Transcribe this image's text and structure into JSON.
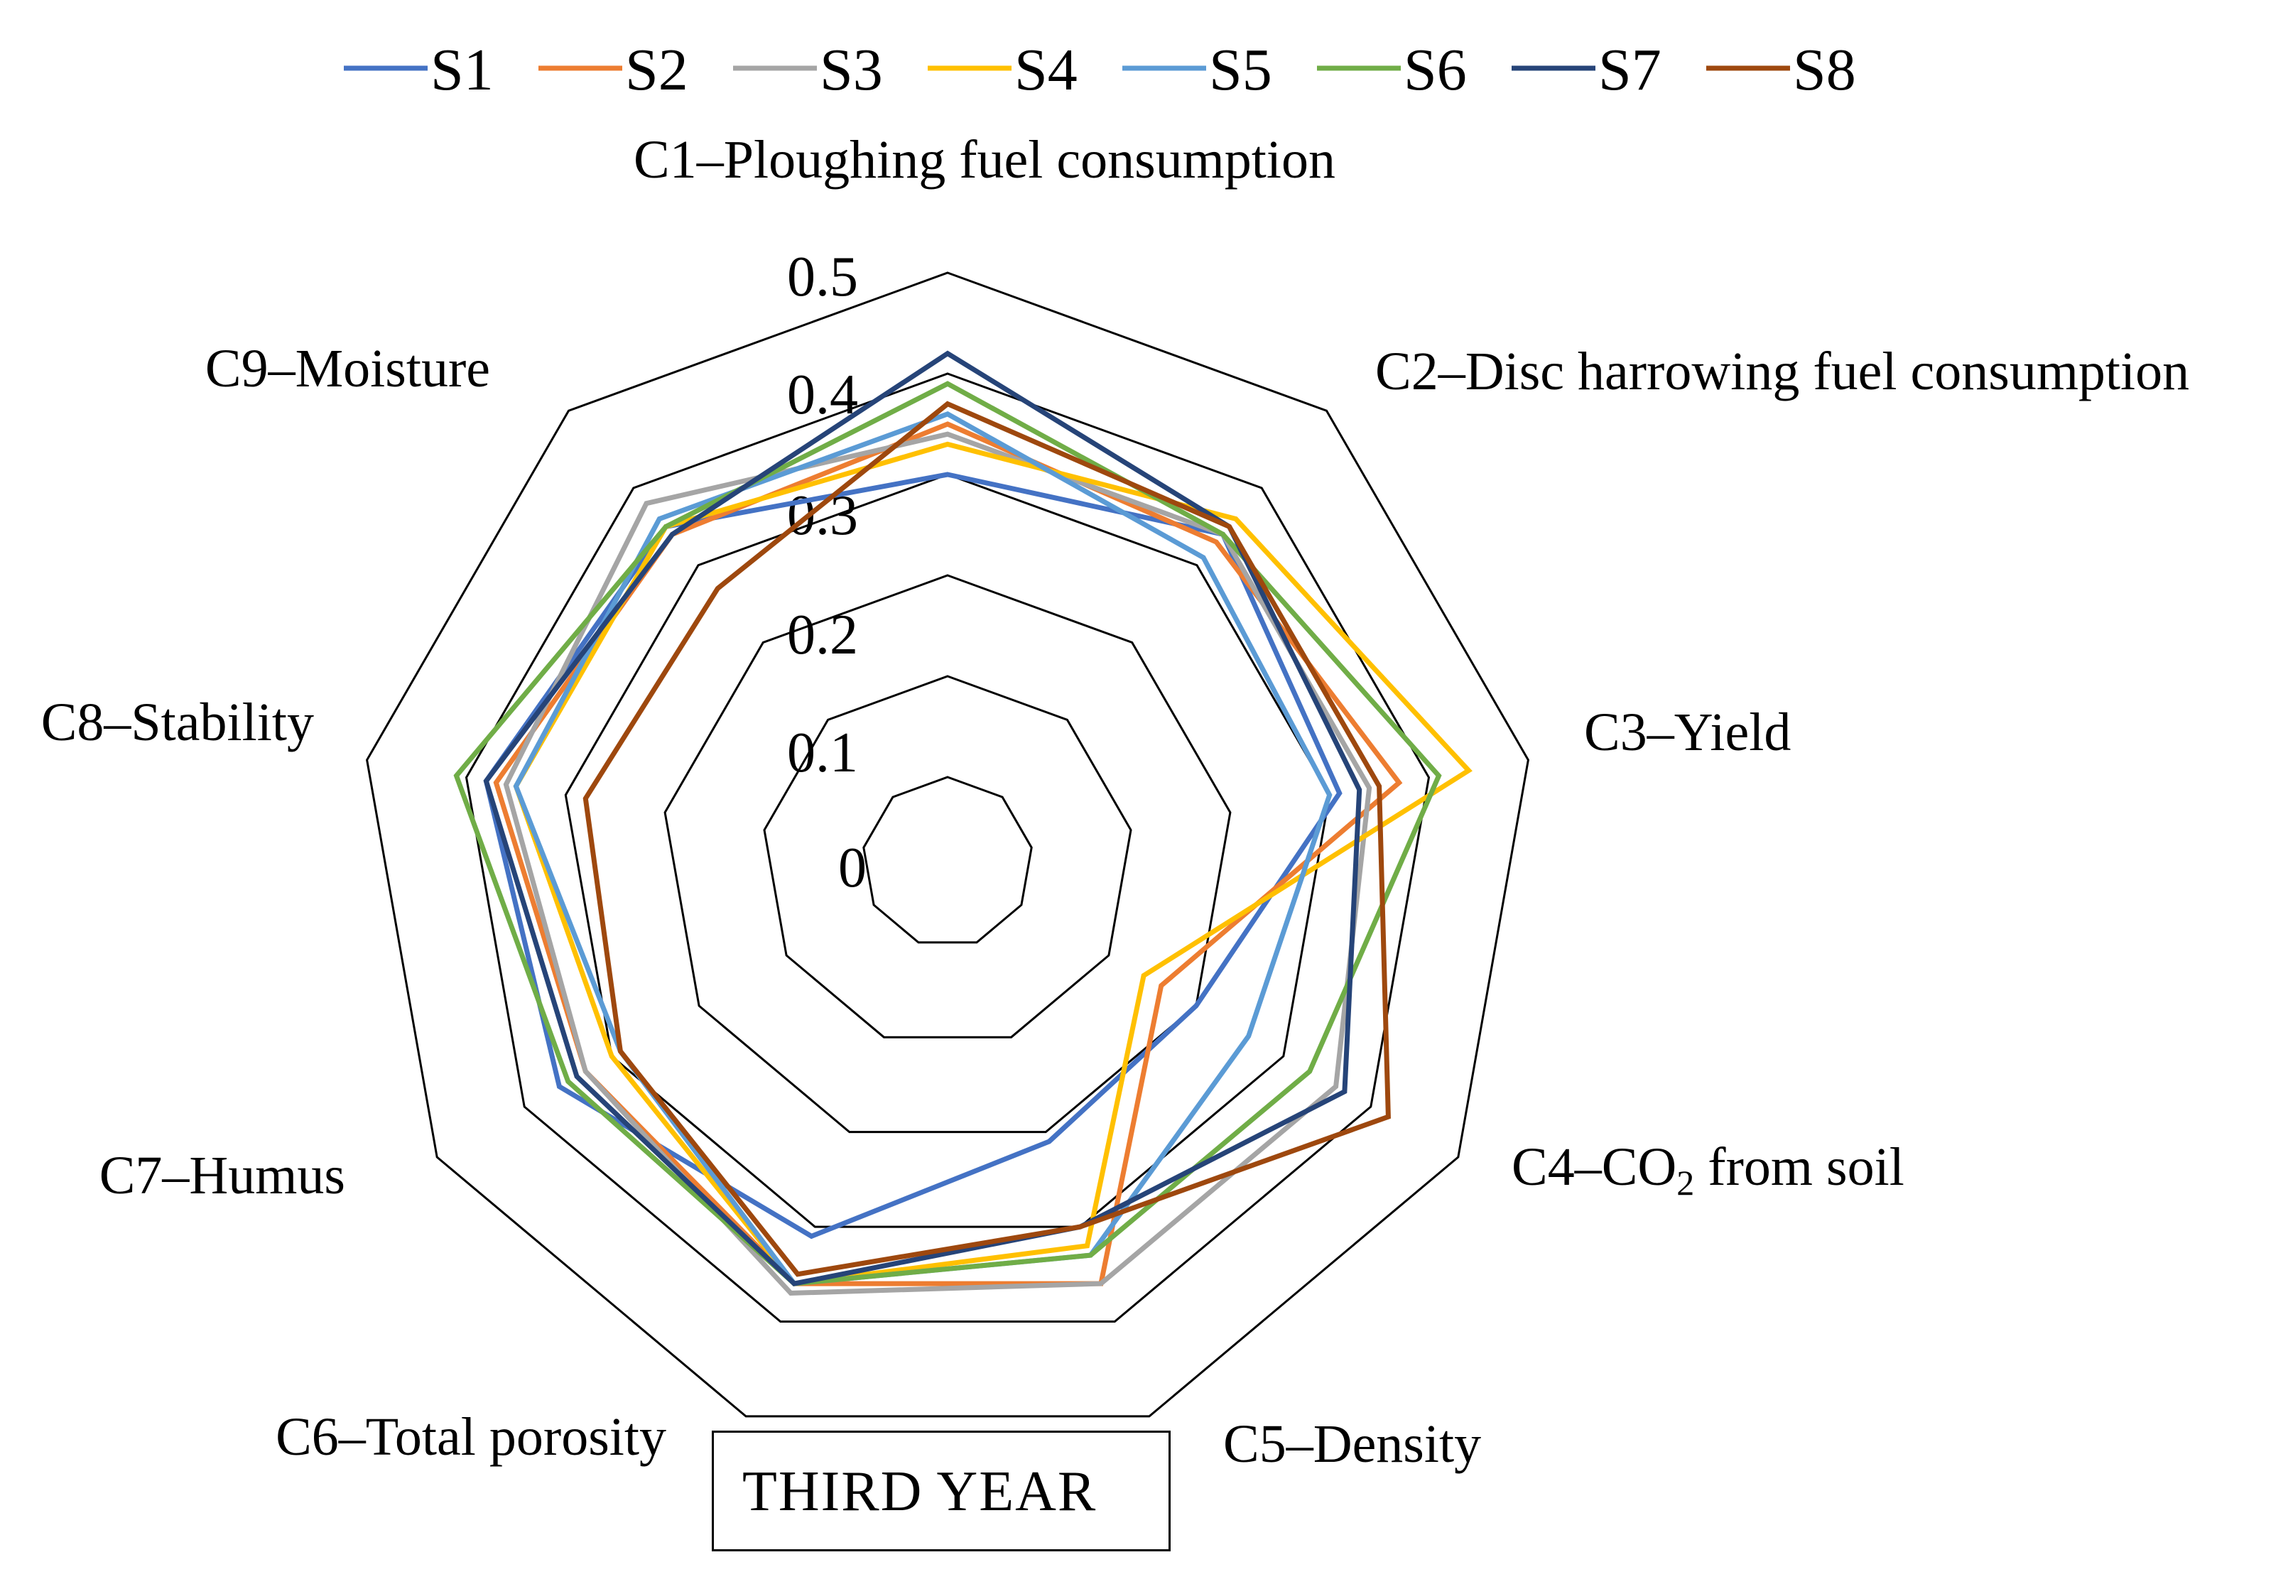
{
  "chart_data": {
    "type": "radar",
    "title": "THIRD YEAR",
    "axes": [
      "C1–Ploughing fuel consumption",
      "C2–Disc harrowing fuel consumption",
      "C3–Yield",
      "C4–CO2 from soil",
      "C5–Density",
      "C6–Total porosity",
      "C7–Humus",
      "C8–Stability",
      "C9–Moisture"
    ],
    "c4_label": {
      "prefix": "C4–CO",
      "sub": "2",
      "suffix": " from soil"
    },
    "range": [
      0,
      0.5
    ],
    "ticks": [
      "0",
      "0.1",
      "0.2",
      "0.3",
      "0.4",
      "0.5"
    ],
    "legend_position": "top",
    "series": [
      {
        "name": "S1",
        "color": "#4472C4",
        "values": [
          0.3,
          0.34,
          0.31,
          0.2,
          0.21,
          0.31,
          0.36,
          0.38,
          0.35
        ]
      },
      {
        "name": "S2",
        "color": "#ED7D31",
        "values": [
          0.35,
          0.33,
          0.37,
          0.16,
          0.36,
          0.36,
          0.33,
          0.37,
          0.34
        ]
      },
      {
        "name": "S3",
        "color": "#A5A5A5",
        "values": [
          0.34,
          0.34,
          0.34,
          0.36,
          0.36,
          0.37,
          0.33,
          0.36,
          0.38
        ]
      },
      {
        "name": "S4",
        "color": "#FFC000",
        "values": [
          0.33,
          0.36,
          0.44,
          0.14,
          0.32,
          0.36,
          0.3,
          0.35,
          0.35
        ]
      },
      {
        "name": "S5",
        "color": "#5B9BD5",
        "values": [
          0.36,
          0.31,
          0.3,
          0.26,
          0.33,
          0.36,
          0.29,
          0.35,
          0.36
        ]
      },
      {
        "name": "S6",
        "color": "#70AD47",
        "values": [
          0.39,
          0.34,
          0.41,
          0.33,
          0.33,
          0.36,
          0.35,
          0.41,
          0.35
        ]
      },
      {
        "name": "S7",
        "color": "#264478",
        "values": [
          0.42,
          0.35,
          0.33,
          0.37,
          0.3,
          0.36,
          0.34,
          0.38,
          0.34
        ]
      },
      {
        "name": "S8",
        "color": "#9E480E",
        "values": [
          0.37,
          0.35,
          0.35,
          0.42,
          0.3,
          0.35,
          0.29,
          0.28,
          0.27
        ]
      }
    ]
  }
}
